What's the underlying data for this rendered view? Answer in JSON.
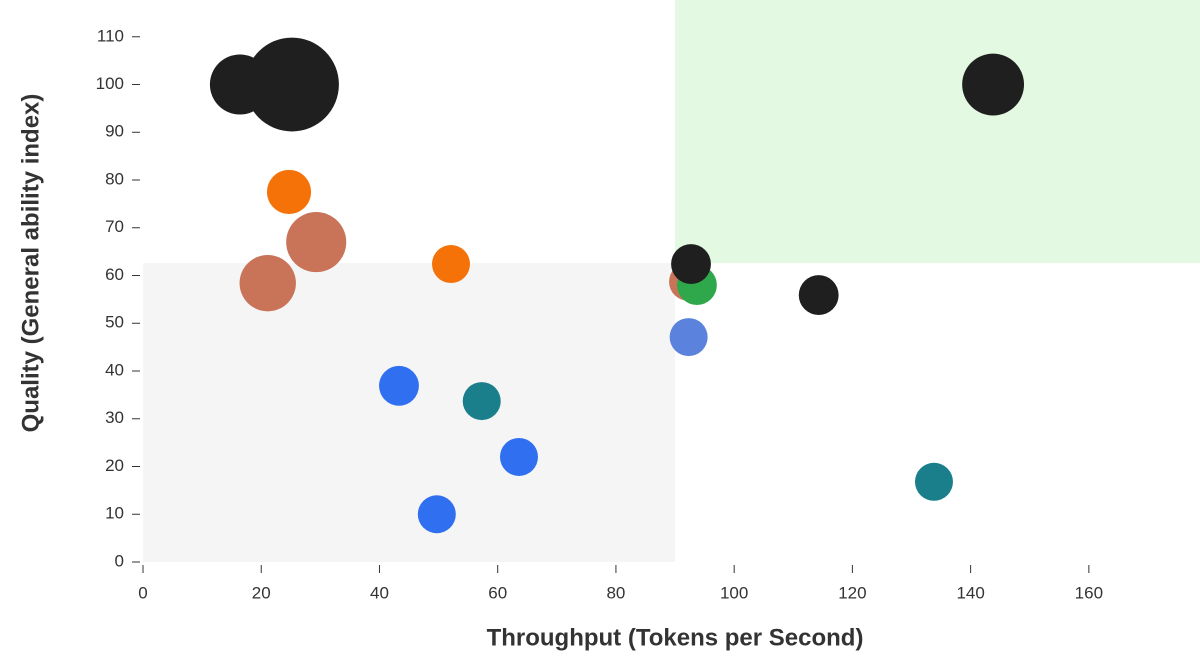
{
  "chart_data": {
    "type": "scatter",
    "x_label": "Throughput (Tokens per Second)",
    "y_label": "Quality (General ability index)",
    "xlim": [
      0,
      178.8
    ],
    "ylim": [
      0,
      117.7
    ],
    "xticks": [
      0,
      20,
      40,
      60,
      80,
      100,
      120,
      140,
      160
    ],
    "yticks": [
      0,
      10,
      20,
      30,
      40,
      50,
      60,
      70,
      80,
      90,
      100,
      110
    ],
    "regions": [
      {
        "x": [
          0,
          90
        ],
        "y": [
          0,
          62.6
        ],
        "color": "#f5f5f5"
      },
      {
        "x": [
          90,
          178.8
        ],
        "y": [
          62.6,
          117.7
        ],
        "color": "#e3f9e1"
      }
    ],
    "x": [
      16.4,
      25.2,
      143.8,
      24.7,
      29.3,
      21.1,
      52.1,
      92.2,
      93.7,
      92.7,
      114.3,
      92.3,
      43.3,
      57.3,
      63.6,
      49.7,
      133.8
    ],
    "y": [
      100,
      100,
      100,
      77.5,
      67,
      58.4,
      62.4,
      58.7,
      58,
      62.4,
      55.9,
      47.1,
      36.9,
      33.7,
      22,
      10,
      16.8
    ],
    "sizes": [
      2.5,
      6.1,
      2.65,
      1.35,
      2.5,
      2.2,
      1,
      1,
      1.1,
      1.1,
      1.1,
      1,
      1.1,
      1,
      1,
      1,
      1
    ],
    "colors": [
      "#1f1f1f",
      "#1f1f1f",
      "#1f1f1f",
      "#f57208",
      "#c97459",
      "#c97459",
      "#f57208",
      "#c97459",
      "#2ea84a",
      "#1f1f1f",
      "#1f1f1f",
      "#5b82dc",
      "#2f6ff0",
      "#1a7f8a",
      "#2f6ff0",
      "#2f6ff0",
      "#1a7f8a"
    ]
  }
}
